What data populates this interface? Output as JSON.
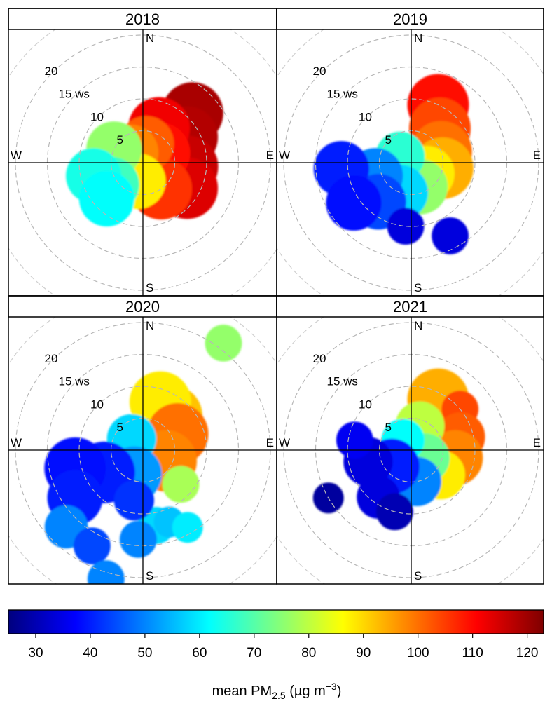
{
  "chart_data": {
    "type": "polar-plot",
    "colorbar": {
      "range": [
        25,
        123
      ],
      "ticks": [
        "30",
        "40",
        "50",
        "60",
        "70",
        "80",
        "90",
        "100",
        "110",
        "120"
      ],
      "tick_values": [
        30,
        40,
        50,
        60,
        70,
        80,
        90,
        100,
        110,
        120
      ],
      "label_main": "mean PM",
      "label_sub": "2.5",
      "label_unit_open": " (µg m",
      "label_sup": "−3",
      "label_close": ")",
      "colors": [
        "#00007f",
        "#0000ff",
        "#007fff",
        "#00ffff",
        "#7fff7f",
        "#ffff00",
        "#ff7f00",
        "#ff0000",
        "#7f0000"
      ]
    },
    "ring_labels": [
      {
        "ws": 5,
        "text": "5"
      },
      {
        "ws": 10,
        "text": "10"
      },
      {
        "ws": 15,
        "text": "15 ws"
      },
      {
        "ws": 20,
        "text": "20"
      }
    ],
    "directions": {
      "north": "N",
      "east": "E",
      "south": "S",
      "west": "W"
    },
    "panels": [
      {
        "title": "2018",
        "blobs": [
          {
            "wd": 45,
            "ws": 11,
            "size": 2.0,
            "value": 119
          },
          {
            "wd": 60,
            "ws": 8,
            "size": 2.0,
            "value": 118
          },
          {
            "wd": 95,
            "ws": 7,
            "size": 2.0,
            "value": 116
          },
          {
            "wd": 120,
            "ws": 8,
            "size": 2.0,
            "value": 114
          },
          {
            "wd": 25,
            "ws": 6,
            "size": 2.0,
            "value": 112
          },
          {
            "wd": 60,
            "ws": 3,
            "size": 2.0,
            "value": 110
          },
          {
            "wd": 145,
            "ws": 5,
            "size": 2.0,
            "value": 106
          },
          {
            "wd": 10,
            "ws": 3,
            "size": 1.8,
            "value": 102
          },
          {
            "wd": 310,
            "ws": 2.5,
            "size": 1.8,
            "value": 98
          },
          {
            "wd": 195,
            "ws": 3,
            "size": 1.8,
            "value": 88
          },
          {
            "wd": 295,
            "ws": 5,
            "size": 1.8,
            "value": 76
          },
          {
            "wd": 235,
            "ws": 6,
            "size": 1.8,
            "value": 68
          },
          {
            "wd": 255,
            "ws": 8,
            "size": 1.8,
            "value": 64
          },
          {
            "wd": 225,
            "ws": 8,
            "size": 1.8,
            "value": 62
          }
        ]
      },
      {
        "title": "2019",
        "blobs": [
          {
            "wd": 25,
            "ws": 10,
            "size": 2.0,
            "value": 110
          },
          {
            "wd": 40,
            "ws": 7,
            "size": 2.0,
            "value": 104
          },
          {
            "wd": 70,
            "ws": 5,
            "size": 2.0,
            "value": 100
          },
          {
            "wd": 100,
            "ws": 5,
            "size": 2.0,
            "value": 94
          },
          {
            "wd": 125,
            "ws": 3,
            "size": 1.8,
            "value": 88
          },
          {
            "wd": 160,
            "ws": 4,
            "size": 1.8,
            "value": 76
          },
          {
            "wd": 300,
            "ws": 2,
            "size": 1.6,
            "value": 66
          },
          {
            "wd": 200,
            "ws": 5,
            "size": 1.8,
            "value": 58
          },
          {
            "wd": 250,
            "ws": 6,
            "size": 1.8,
            "value": 50
          },
          {
            "wd": 220,
            "ws": 8,
            "size": 1.8,
            "value": 44
          },
          {
            "wd": 265,
            "ws": 11,
            "size": 1.8,
            "value": 40
          },
          {
            "wd": 235,
            "ws": 11,
            "size": 1.8,
            "value": 38
          },
          {
            "wd": 185,
            "ws": 10,
            "size": 1.2,
            "value": 34
          },
          {
            "wd": 152,
            "ws": 13,
            "size": 1.2,
            "value": 34
          }
        ]
      },
      {
        "title": "2020",
        "blobs": [
          {
            "wd": 37,
            "ws": 21,
            "size": 1.2,
            "value": 76
          },
          {
            "wd": 40,
            "ws": 7,
            "size": 2.0,
            "value": 92
          },
          {
            "wd": 20,
            "ws": 8,
            "size": 2.0,
            "value": 88
          },
          {
            "wd": 65,
            "ws": 6,
            "size": 2.0,
            "value": 100
          },
          {
            "wd": 115,
            "ws": 4,
            "size": 2.0,
            "value": 98
          },
          {
            "wd": 132,
            "ws": 8,
            "size": 1.2,
            "value": 78
          },
          {
            "wd": 315,
            "ws": 2.5,
            "size": 1.6,
            "value": 58
          },
          {
            "wd": 200,
            "ws": 4,
            "size": 1.8,
            "value": 52
          },
          {
            "wd": 240,
            "ws": 7,
            "size": 2.0,
            "value": 40
          },
          {
            "wd": 255,
            "ws": 11,
            "size": 2.0,
            "value": 38
          },
          {
            "wd": 235,
            "ws": 13,
            "size": 1.8,
            "value": 40
          },
          {
            "wd": 225,
            "ws": 17,
            "size": 1.4,
            "value": 50
          },
          {
            "wd": 208,
            "ws": 17,
            "size": 1.2,
            "value": 44
          },
          {
            "wd": 196,
            "ws": 21,
            "size": 1.2,
            "value": 50
          },
          {
            "wd": 170,
            "ws": 12,
            "size": 1.2,
            "value": 58
          },
          {
            "wd": 160,
            "ws": 12,
            "size": 1.0,
            "value": 56
          },
          {
            "wd": 150,
            "ws": 14,
            "size": 1.0,
            "value": 60
          },
          {
            "wd": 183,
            "ws": 14,
            "size": 1.2,
            "value": 50
          },
          {
            "wd": 190,
            "ws": 8,
            "size": 1.3,
            "value": 42
          }
        ]
      },
      {
        "title": "2021",
        "blobs": [
          {
            "wd": 28,
            "ws": 9,
            "size": 2.0,
            "value": 94
          },
          {
            "wd": 50,
            "ws": 10,
            "size": 1.2,
            "value": 104
          },
          {
            "wd": 75,
            "ws": 8,
            "size": 1.6,
            "value": 102
          },
          {
            "wd": 100,
            "ws": 7,
            "size": 1.8,
            "value": 98
          },
          {
            "wd": 130,
            "ws": 6,
            "size": 1.6,
            "value": 88
          },
          {
            "wd": 20,
            "ws": 4,
            "size": 1.6,
            "value": 80
          },
          {
            "wd": 120,
            "ws": 2.5,
            "size": 1.6,
            "value": 72
          },
          {
            "wd": 320,
            "ws": 2,
            "size": 1.4,
            "value": 62
          },
          {
            "wd": 170,
            "ws": 5,
            "size": 1.6,
            "value": 50
          },
          {
            "wd": 230,
            "ws": 4,
            "size": 1.8,
            "value": 40
          },
          {
            "wd": 255,
            "ws": 7,
            "size": 1.6,
            "value": 34
          },
          {
            "wd": 280,
            "ws": 9,
            "size": 1.2,
            "value": 36
          },
          {
            "wd": 215,
            "ws": 9,
            "size": 1.4,
            "value": 34
          },
          {
            "wd": 240,
            "ws": 15,
            "size": 1.0,
            "value": 28
          },
          {
            "wd": 195,
            "ws": 10,
            "size": 1.2,
            "value": 30
          }
        ]
      }
    ]
  }
}
